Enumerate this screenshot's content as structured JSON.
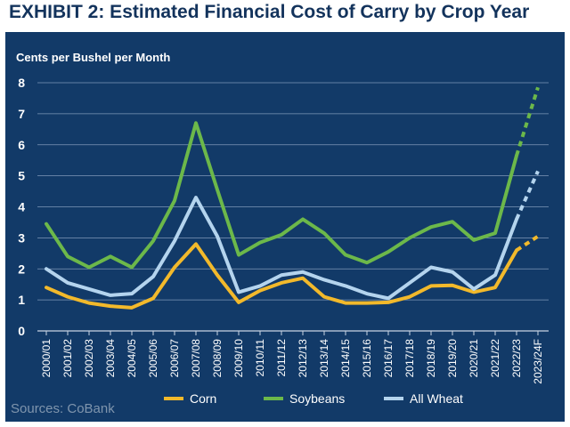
{
  "header": {
    "title": "EXHIBIT 2: Estimated Financial Cost of Carry by Crop Year"
  },
  "footer": {
    "sources": "Sources: CoBank"
  },
  "colors": {
    "corn": "#f2b92b",
    "soybeans": "#6cb84a",
    "wheat": "#b4d4ee",
    "panel": "#123a68",
    "grid": "#7f98b8",
    "text": "#ffffff"
  },
  "chart_data": {
    "type": "line",
    "title": "EXHIBIT 2: Estimated Financial Cost of Carry by Crop Year",
    "ylabel": "Cents per Bushel per Month",
    "xlabel": "",
    "ylim": [
      0,
      8
    ],
    "yticks": [
      0,
      1,
      2,
      3,
      4,
      5,
      6,
      7,
      8
    ],
    "grid": true,
    "legend_position": "bottom",
    "forecast_from_index": 22,
    "categories": [
      "2000/01",
      "2001/02",
      "2002/03",
      "2003/04",
      "2004/05",
      "2005/06",
      "2006/07",
      "2007/08",
      "2008/09",
      "2009/10",
      "2010/11",
      "2011/12",
      "2012/13",
      "2013/14",
      "2014/15",
      "2015/16",
      "2016/17",
      "2017/18",
      "2018/19",
      "2019/20",
      "2020/21",
      "2021/22",
      "2022/23",
      "2023/24F"
    ],
    "series": [
      {
        "name": "Corn",
        "color": "#f2b92b",
        "values": [
          1.4,
          1.1,
          0.9,
          0.8,
          0.75,
          1.05,
          2.05,
          2.8,
          1.8,
          0.92,
          1.3,
          1.55,
          1.7,
          1.1,
          0.9,
          0.9,
          0.92,
          1.1,
          1.45,
          1.47,
          1.25,
          1.4,
          2.6,
          3.05
        ]
      },
      {
        "name": "Soybeans",
        "color": "#6cb84a",
        "values": [
          3.45,
          2.4,
          2.05,
          2.4,
          2.05,
          2.9,
          4.2,
          6.7,
          4.55,
          2.45,
          2.85,
          3.1,
          3.6,
          3.15,
          2.45,
          2.2,
          2.55,
          3.0,
          3.35,
          3.52,
          2.93,
          3.15,
          5.65,
          7.85
        ]
      },
      {
        "name": "All Wheat",
        "color": "#b4d4ee",
        "values": [
          2.0,
          1.55,
          1.35,
          1.15,
          1.2,
          1.75,
          2.9,
          4.3,
          3.05,
          1.25,
          1.45,
          1.8,
          1.9,
          1.65,
          1.45,
          1.2,
          1.05,
          1.55,
          2.05,
          1.9,
          1.35,
          1.8,
          3.6,
          5.15
        ]
      }
    ]
  }
}
